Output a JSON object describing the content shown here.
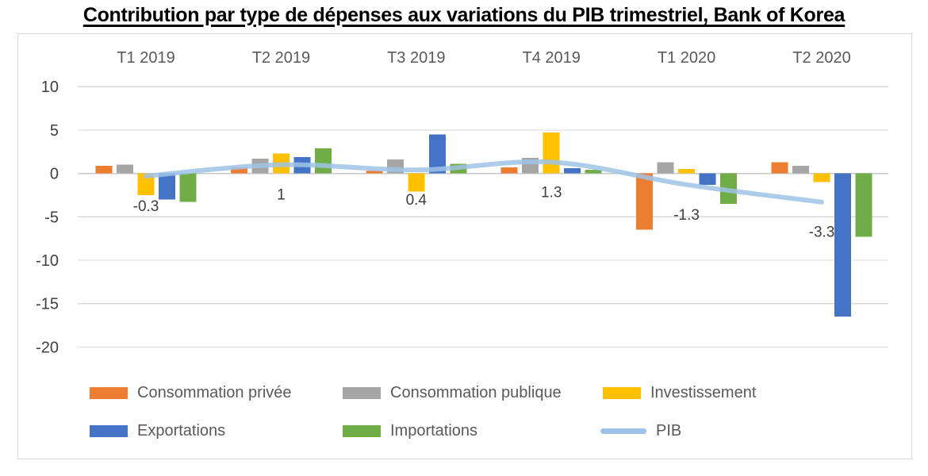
{
  "title": "Contribution par type de dépenses aux variations du PIB trimestriel, Bank of Korea",
  "chart_data": {
    "type": "combo-grouped-bar-and-line",
    "categories": [
      "T1 2019",
      "T2 2019",
      "T3 2019",
      "T4 2019",
      "T1 2020",
      "T2 2020"
    ],
    "series": [
      {
        "key": "consommation-privee",
        "name": "Consommation privée",
        "type": "bar",
        "color": "#ED7D31",
        "values": [
          0.9,
          0.7,
          0.3,
          0.7,
          -6.5,
          1.3
        ]
      },
      {
        "key": "consommation-publique",
        "name": "Consommation publique",
        "type": "bar",
        "color": "#A5A5A5",
        "values": [
          1.0,
          1.7,
          1.6,
          1.8,
          1.3,
          0.9
        ]
      },
      {
        "key": "investissement",
        "name": "Investissement",
        "type": "bar",
        "color": "#FFC000",
        "values": [
          -2.5,
          2.3,
          -2.1,
          4.7,
          0.5,
          -1.0
        ]
      },
      {
        "key": "exportations",
        "name": "Exportations",
        "type": "bar",
        "color": "#4472C4",
        "values": [
          -3.0,
          1.9,
          4.5,
          0.6,
          -1.3,
          -16.5
        ]
      },
      {
        "key": "importations",
        "name": "Importations",
        "type": "bar",
        "color": "#70AD47",
        "values": [
          -3.3,
          2.9,
          1.1,
          0.4,
          -3.5,
          -7.3
        ]
      },
      {
        "key": "pib",
        "name": "PIB",
        "type": "line",
        "color": "#9DC3E6",
        "values": [
          -0.3,
          1,
          0.4,
          1.3,
          -1.3,
          -3.3
        ],
        "data_labels": [
          "-0.3",
          "1",
          "0.4",
          "1.3",
          "-1.3",
          "-3.3"
        ]
      }
    ],
    "y_axis": {
      "min": -20,
      "max": 10,
      "tick_step": 5,
      "ticks": [
        10,
        5,
        0,
        -5,
        -10,
        -15,
        -20
      ]
    },
    "grid": true,
    "legend_position": "bottom"
  },
  "colors": {
    "background": "#FFFFFF",
    "frame_border": "#D9D9D9",
    "gridline": "#D9D9D9",
    "zero_line": "#C8C8C8",
    "axis_text": "#404040",
    "category_text": "#595959",
    "legend_text": "#595959",
    "title_text": "#000000"
  }
}
